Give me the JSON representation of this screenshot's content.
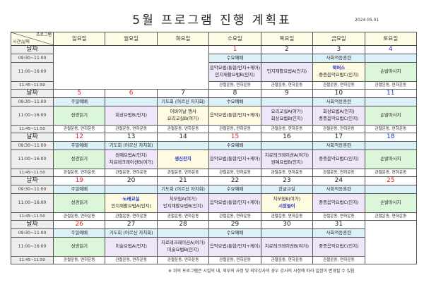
{
  "title": "5월 프로그램 진행 계획표",
  "issued_date": "2024 05.01",
  "header": {
    "corner_top": "프로그램",
    "corner_bottom": "시간\\날짜",
    "days": [
      "일요일",
      "월요일",
      "화요일",
      "수요일",
      "목요일",
      "금요일",
      "토요일"
    ]
  },
  "row_labels": {
    "date": "날짜",
    "morning": "09:30~11:00",
    "midday": "11:00~16:00",
    "exercise": "11:45~11:50"
  },
  "colors": {
    "blue": "#dcf0fa",
    "lavender": "#eee6f9",
    "green": "#dcf6da",
    "yellow": "#fffbe3",
    "holiday": "#e0262a",
    "saturday": "#2233dd"
  },
  "weeks": [
    {
      "leading_blank": 3,
      "trailing_blank": 0,
      "days": [
        {
          "date": "1",
          "date_color": "red",
          "morning": "수요예배",
          "morning_color": "blue",
          "midday": [
            {
              "t": "음악요법(통합/인지+케어)"
            },
            {
              "t": "인지재활요법B(인지)"
            }
          ],
          "midday_color": "lavender",
          "exercise": "관절운동, 연하운동"
        },
        {
          "date": "2",
          "date_color": "black",
          "morning": "",
          "morning_color": "blue",
          "midday": [
            {
              "t": "인지재활요법A(인지)"
            }
          ],
          "midday_color": "lavender",
          "exercise": "관절운동, 연하운동"
        },
        {
          "date": "3",
          "date_color": "black",
          "morning": "사회적응훈련",
          "morning_color": "blue",
          "midday": [
            {
              "t": "북버스",
              "accent": true
            },
            {
              "t": "중증음악요법C(인지)"
            }
          ],
          "midday_color": "yellow",
          "exercise": "관절운동, 연하운동"
        },
        {
          "date": "4",
          "date_color": "blue",
          "morning": "",
          "morning_color": "blue",
          "midday": [
            {
              "t": "손발마사지"
            }
          ],
          "midday_color": "green",
          "exercise": "관절운동, 연하운동"
        }
      ]
    },
    {
      "leading_blank": 0,
      "trailing_blank": 0,
      "days": [
        {
          "date": "5",
          "date_color": "red",
          "morning": "주일예배",
          "morning_color": "blue",
          "midday": [
            {
              "t": "성경읽기"
            }
          ],
          "midday_color": "green",
          "exercise": "관절운동, 연하운동"
        },
        {
          "date": "6",
          "date_color": "red",
          "morning": "",
          "morning_color": "blue",
          "midday": [
            {
              "t": "회상요법B(인지)"
            }
          ],
          "midday_color": "lavender",
          "exercise": "관절운동, 연하운동"
        },
        {
          "date": "7",
          "date_color": "black",
          "morning": "기도회 (어르신 자치회)",
          "morning_color": "blue",
          "midday": [
            {
              "t": "어버이날 행사"
            },
            {
              "t": "요리교실B(여가)"
            }
          ],
          "midday_color": "yellow",
          "exercise": "관절운동, 연하운동"
        },
        {
          "date": "8",
          "date_color": "black",
          "morning": "수요예배",
          "morning_color": "blue",
          "midday": [
            {
              "t": "음악요법(통합/인지+케어)"
            }
          ],
          "midday_color": "yellow",
          "exercise": "관절운동, 연하운동"
        },
        {
          "date": "9",
          "date_color": "black",
          "morning": "",
          "morning_color": "blue",
          "midday": [
            {
              "t": "요리교실A(여가)"
            },
            {
              "t": "회상요법B(인지)"
            }
          ],
          "midday_color": "lavender",
          "exercise": "관절운동, 연하운동"
        },
        {
          "date": "10",
          "date_color": "black",
          "morning": "사회적응훈련",
          "morning_color": "blue",
          "midday": [
            {
              "t": "회상요법A(인지)"
            },
            {
              "t": "중증음악요법C(인지)"
            }
          ],
          "midday_color": "lavender",
          "exercise": "관절운동, 연하운동"
        },
        {
          "date": "11",
          "date_color": "blue",
          "morning": "",
          "morning_color": "blue",
          "midday": [
            {
              "t": "손발마사지"
            }
          ],
          "midday_color": "green",
          "exercise": "관절운동, 연하운동"
        }
      ]
    },
    {
      "leading_blank": 0,
      "trailing_blank": 0,
      "days": [
        {
          "date": "12",
          "date_color": "red",
          "morning": "주일예배",
          "morning_color": "blue",
          "midday": [
            {
              "t": "성경읽기"
            }
          ],
          "midday_color": "green",
          "exercise": "관절운동, 연하운동"
        },
        {
          "date": "13",
          "date_color": "black",
          "morning": "기도회 (어르신 자치회)",
          "morning_color": "blue",
          "midday": [
            {
              "t": "원예요법A(인지)"
            },
            {
              "t": "치료레크레이션B(여가)"
            }
          ],
          "midday_color": "lavender",
          "exercise": "관절운동, 연하운동"
        },
        {
          "date": "14",
          "date_color": "black",
          "morning": "",
          "morning_color": "blue",
          "midday": [
            {
              "t": "생신잔치",
              "accent": true
            }
          ],
          "midday_color": "yellow",
          "exercise": "관절운동, 연하운동"
        },
        {
          "date": "15",
          "date_color": "red",
          "morning": "수요예배",
          "morning_color": "blue",
          "midday": [
            {
              "t": "음악요법(통합/인지+케어)"
            }
          ],
          "midday_color": "lavender",
          "exercise": "관절운동, 연하운동"
        },
        {
          "date": "16",
          "date_color": "black",
          "morning": "",
          "morning_color": "blue",
          "midday": [
            {
              "t": "치료레크레이션A(여가)"
            },
            {
              "t": "원예요법B(인지)"
            }
          ],
          "midday_color": "lavender",
          "exercise": "관절운동, 연하운동"
        },
        {
          "date": "17",
          "date_color": "black",
          "morning": "사회적응훈련",
          "morning_color": "blue",
          "midday": [
            {
              "t": "중증음악요법C(인지)"
            }
          ],
          "midday_color": "lavender",
          "exercise": "관절운동, 연하운동"
        },
        {
          "date": "18",
          "date_color": "blue",
          "morning": "",
          "morning_color": "blue",
          "midday": [
            {
              "t": "손발마사지"
            }
          ],
          "midday_color": "green",
          "exercise": "관절운동, 연하운동"
        }
      ]
    },
    {
      "leading_blank": 0,
      "trailing_blank": 0,
      "days": [
        {
          "date": "19",
          "date_color": "red",
          "morning": "주일예배",
          "morning_color": "blue",
          "midday": [
            {
              "t": "성경읽기"
            }
          ],
          "midday_color": "green",
          "exercise": "관절운동, 연하운동"
        },
        {
          "date": "20",
          "date_color": "black",
          "morning": "",
          "morning_color": "blue",
          "midday": [
            {
              "t": "노래교실",
              "accent": true
            },
            {
              "t": "인지재활요법A(인지)"
            }
          ],
          "midday_color": "yellow",
          "exercise": "관절운동, 연하운동"
        },
        {
          "date": "21",
          "date_color": "black",
          "morning": "기도회 (어르신 자치회)",
          "morning_color": "blue",
          "midday": [
            {
              "t": "치모임A(여가)"
            },
            {
              "t": "인지재활요법B(인지)"
            }
          ],
          "midday_color": "lavender",
          "exercise": "관절운동, 연하운동"
        },
        {
          "date": "22",
          "date_color": "black",
          "morning": "수요예배",
          "morning_color": "blue",
          "midday": [
            {
              "t": "음악요법(통합/인지+케어)"
            }
          ],
          "midday_color": "lavender",
          "exercise": "관절운동, 연하운동"
        },
        {
          "date": "23",
          "date_color": "black",
          "morning": "한글교실",
          "morning_color": "blue",
          "midday": [
            {
              "t": "치모임B(여가)"
            },
            {
              "t": "시장놀이",
              "accent": true
            }
          ],
          "midday_color": "yellow",
          "exercise": "관절운동, 연하운동"
        },
        {
          "date": "24",
          "date_color": "black",
          "morning": "사회적응훈련",
          "morning_color": "blue",
          "midday": [
            {
              "t": "중증음악요법C(인지)"
            }
          ],
          "midday_color": "lavender",
          "exercise": "관절운동, 연하운동"
        },
        {
          "date": "25",
          "date_color": "red",
          "morning": "",
          "morning_color": "blue",
          "midday": [
            {
              "t": "손발마사지"
            }
          ],
          "midday_color": "green",
          "exercise": "관절운동, 연하운동"
        }
      ]
    },
    {
      "leading_blank": 0,
      "trailing_blank": 1,
      "days": [
        {
          "date": "26",
          "date_color": "red",
          "morning": "주일예배",
          "morning_color": "blue",
          "midday": [
            {
              "t": "성경읽기"
            }
          ],
          "midday_color": "green",
          "exercise": "관절운동, 연하운동"
        },
        {
          "date": "27",
          "date_color": "black",
          "morning": "기도회 (어르신 자치회)",
          "morning_color": "blue",
          "midday": [
            {
              "t": "미술요법A(인지)"
            }
          ],
          "midday_color": "lavender",
          "exercise": "관절운동, 연하운동"
        },
        {
          "date": "28",
          "date_color": "black",
          "morning": "",
          "morning_color": "blue",
          "midday": [
            {
              "t": "치료레크레이션A(여가)"
            },
            {
              "t": "미술요법B(인지)"
            }
          ],
          "midday_color": "lavender",
          "exercise": "관절운동, 연하운동"
        },
        {
          "date": "29",
          "date_color": "black",
          "morning": "수요예배",
          "morning_color": "blue",
          "midday": [
            {
              "t": "음악요법(통합/인지+케어)"
            }
          ],
          "midday_color": "lavender",
          "exercise": "관절운동, 연하운동"
        },
        {
          "date": "30",
          "date_color": "black",
          "morning": "",
          "morning_color": "blue",
          "midday": [
            {
              "t": "치료레크레이션B(여가)"
            }
          ],
          "midday_color": "lavender",
          "exercise": "관절운동, 연하운동"
        },
        {
          "date": "31",
          "date_color": "black",
          "morning": "사회적응훈련",
          "morning_color": "blue",
          "midday": [
            {
              "t": "중증음악요법C(인지)"
            }
          ],
          "midday_color": "lavender",
          "exercise": "관절운동, 연하운동"
        }
      ]
    }
  ],
  "footnote": "※ 위의 프로그램은 시설의 내, 외부의 사정 및  외부강사의 경우 강사의  사정에 따라 일정이 변경될 수 있음"
}
